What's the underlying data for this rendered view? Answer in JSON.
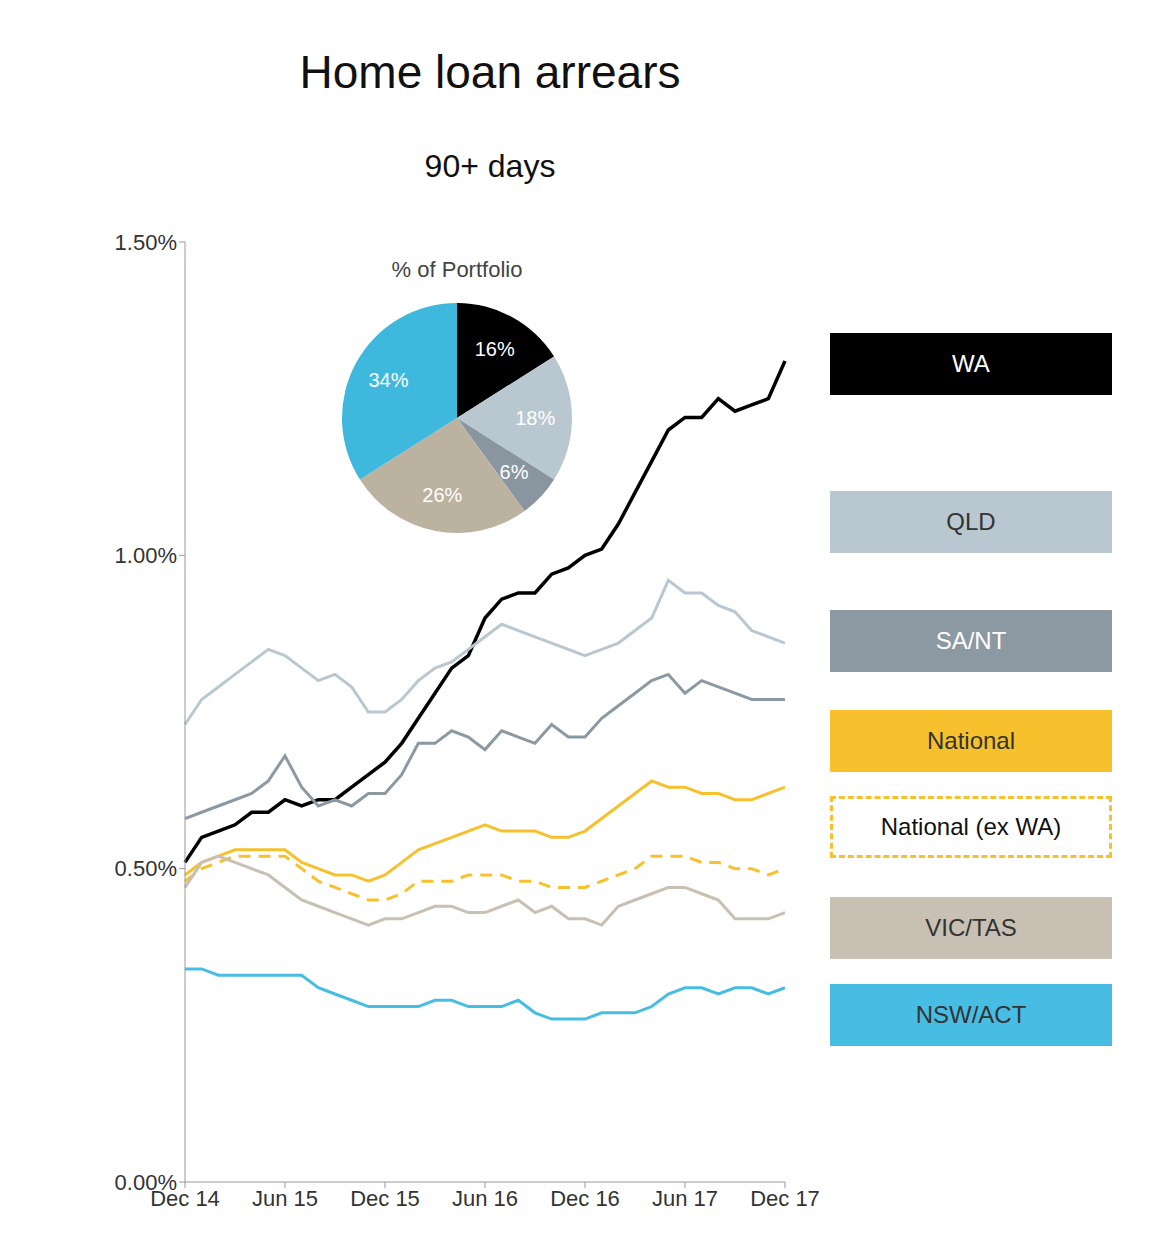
{
  "chart_data": [
    {
      "type": "line",
      "title": "Home loan arrears",
      "subtitle": "90+ days",
      "categories": [
        "Dec 14",
        null,
        null,
        null,
        null,
        null,
        "Jun 15",
        null,
        null,
        null,
        null,
        null,
        "Dec 15",
        null,
        null,
        null,
        null,
        null,
        "Jun 16",
        null,
        null,
        null,
        null,
        null,
        "Dec 16",
        null,
        null,
        null,
        null,
        null,
        "Jun 17",
        null,
        null,
        null,
        null,
        null,
        "Dec 17"
      ],
      "series": [
        {
          "name": "WA",
          "color": "#000000",
          "line_style": "solid",
          "values": [
            0.51,
            0.55,
            0.56,
            0.57,
            0.59,
            0.59,
            0.61,
            0.6,
            0.61,
            0.61,
            0.63,
            0.65,
            0.67,
            0.7,
            0.74,
            0.78,
            0.82,
            0.84,
            0.9,
            0.93,
            0.94,
            0.94,
            0.97,
            0.98,
            1.0,
            1.01,
            1.05,
            1.1,
            1.15,
            1.2,
            1.22,
            1.22,
            1.25,
            1.23,
            1.24,
            1.25,
            1.31
          ]
        },
        {
          "name": "QLD",
          "color": "#b9c8d0",
          "line_style": "solid",
          "values": [
            0.73,
            0.77,
            0.79,
            0.81,
            0.83,
            0.85,
            0.84,
            0.82,
            0.8,
            0.81,
            0.79,
            0.75,
            0.75,
            0.77,
            0.8,
            0.82,
            0.83,
            0.85,
            0.87,
            0.89,
            0.88,
            0.87,
            0.86,
            0.85,
            0.84,
            0.85,
            0.86,
            0.88,
            0.9,
            0.96,
            0.94,
            0.94,
            0.92,
            0.91,
            0.88,
            0.87,
            0.86
          ]
        },
        {
          "name": "SA/NT",
          "color": "#8c99a3",
          "line_style": "solid",
          "values": [
            0.58,
            0.59,
            0.6,
            0.61,
            0.62,
            0.64,
            0.68,
            0.63,
            0.6,
            0.61,
            0.6,
            0.62,
            0.62,
            0.65,
            0.7,
            0.7,
            0.72,
            0.71,
            0.69,
            0.72,
            0.71,
            0.7,
            0.73,
            0.71,
            0.71,
            0.74,
            0.76,
            0.78,
            0.8,
            0.81,
            0.78,
            0.8,
            0.79,
            0.78,
            0.77,
            0.77,
            0.77
          ]
        },
        {
          "name": "National",
          "color": "#f7c12d",
          "line_style": "solid",
          "values": [
            0.49,
            0.51,
            0.52,
            0.53,
            0.53,
            0.53,
            0.53,
            0.51,
            0.5,
            0.49,
            0.49,
            0.48,
            0.49,
            0.51,
            0.53,
            0.54,
            0.55,
            0.56,
            0.57,
            0.56,
            0.56,
            0.56,
            0.55,
            0.55,
            0.56,
            0.58,
            0.6,
            0.62,
            0.64,
            0.63,
            0.63,
            0.62,
            0.62,
            0.61,
            0.61,
            0.62,
            0.63
          ]
        },
        {
          "name": "National (ex WA)",
          "color": "#f7c12d",
          "line_style": "dashed",
          "values": [
            0.48,
            0.5,
            0.51,
            0.52,
            0.52,
            0.52,
            0.52,
            0.5,
            0.48,
            0.47,
            0.46,
            0.45,
            0.45,
            0.46,
            0.48,
            0.48,
            0.48,
            0.49,
            0.49,
            0.49,
            0.48,
            0.48,
            0.47,
            0.47,
            0.47,
            0.48,
            0.49,
            0.5,
            0.52,
            0.52,
            0.52,
            0.51,
            0.51,
            0.5,
            0.5,
            0.49,
            0.5
          ]
        },
        {
          "name": "VIC/TAS",
          "color": "#c8c0b3",
          "line_style": "solid",
          "values": [
            0.47,
            0.51,
            0.52,
            0.51,
            0.5,
            0.49,
            0.47,
            0.45,
            0.44,
            0.43,
            0.42,
            0.41,
            0.42,
            0.42,
            0.43,
            0.44,
            0.44,
            0.43,
            0.43,
            0.44,
            0.45,
            0.43,
            0.44,
            0.42,
            0.42,
            0.41,
            0.44,
            0.45,
            0.46,
            0.47,
            0.47,
            0.46,
            0.45,
            0.42,
            0.42,
            0.42,
            0.43
          ]
        },
        {
          "name": "NSW/ACT",
          "color": "#48bde3",
          "line_style": "solid",
          "values": [
            0.34,
            0.34,
            0.33,
            0.33,
            0.33,
            0.33,
            0.33,
            0.33,
            0.31,
            0.3,
            0.29,
            0.28,
            0.28,
            0.28,
            0.28,
            0.29,
            0.29,
            0.28,
            0.28,
            0.28,
            0.29,
            0.27,
            0.26,
            0.26,
            0.26,
            0.27,
            0.27,
            0.27,
            0.28,
            0.3,
            0.31,
            0.31,
            0.3,
            0.31,
            0.31,
            0.3,
            0.31
          ]
        }
      ],
      "ylim": [
        0,
        1.5
      ],
      "yticks": [
        {
          "value": 0,
          "label": "0.00%"
        },
        {
          "value": 0.5,
          "label": "0.50%"
        },
        {
          "value": 1.0,
          "label": "1.00%"
        },
        {
          "value": 1.5,
          "label": "1.50%"
        }
      ],
      "legend": "right",
      "grid": false
    },
    {
      "type": "pie",
      "title": "% of Portfolio",
      "categories": [
        "WA",
        "QLD",
        "SA/NT",
        "VIC/TAS",
        "NSW/ACT"
      ],
      "values": [
        16,
        18,
        6,
        26,
        34
      ],
      "value_labels": [
        "16%",
        "18%",
        "6%",
        "26%",
        "34%"
      ],
      "colors": [
        "#000000",
        "#b9c8d0",
        "#8a969f",
        "#bbb29f",
        "#3fb8de"
      ],
      "data_labels": true
    }
  ]
}
